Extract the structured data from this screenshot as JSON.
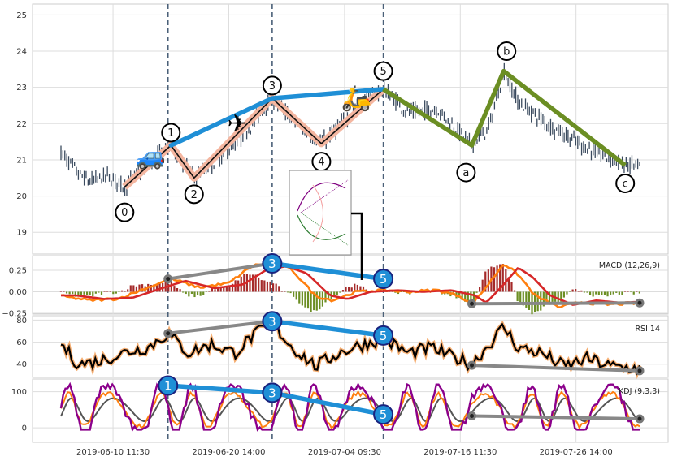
{
  "chart_data": [
    {
      "type": "candlestick",
      "panel": "price",
      "yticks": [
        19,
        20,
        21,
        22,
        23,
        24,
        25
      ],
      "ylim": [
        18.4,
        25.3
      ],
      "xlim": [
        0,
        100
      ],
      "xticks": [
        {
          "label": "2019-06-10 11:30",
          "pos": 9
        },
        {
          "label": "2019-06-20 14:00",
          "pos": 29
        },
        {
          "label": "2019-07-04 09:30",
          "pos": 49
        },
        {
          "label": "2019-07-16 11:30",
          "pos": 69
        },
        {
          "label": "2019-07-26 14:00",
          "pos": 89
        }
      ],
      "grid": true,
      "vlines_x": [
        18.5,
        36.5,
        55.7
      ],
      "elliott_impulse": {
        "labels": [
          "0",
          "1",
          "2",
          "3",
          "4",
          "5"
        ],
        "points": [
          [
            11,
            20.25
          ],
          [
            19,
            21.4
          ],
          [
            23,
            20.5
          ],
          [
            36.5,
            22.7
          ],
          [
            45,
            21.45
          ],
          [
            55.7,
            22.95
          ]
        ],
        "label_positions": [
          [
            11,
            19.55
          ],
          [
            19,
            21.75
          ],
          [
            23,
            20.05
          ],
          [
            36.5,
            23.05
          ],
          [
            45,
            20.95
          ],
          [
            55.7,
            23.45
          ]
        ]
      },
      "elliott_corrective": {
        "labels": [
          "a",
          "b",
          "c"
        ],
        "points": [
          [
            55.7,
            22.95
          ],
          [
            71,
            21.4
          ],
          [
            76.5,
            23.45
          ],
          [
            97.5,
            20.85
          ]
        ],
        "label_positions": [
          [
            70,
            20.65
          ],
          [
            77,
            24.0
          ],
          [
            97.5,
            20.35
          ]
        ]
      },
      "trend_line_points": [
        [
          19,
          21.4
        ],
        [
          36.5,
          22.7
        ],
        [
          55.7,
          22.95
        ]
      ],
      "icons": [
        {
          "name": "car",
          "glyph": "🚙",
          "x": 15.5,
          "y": 21.1
        },
        {
          "name": "airplane",
          "glyph": "✈",
          "x": 30.5,
          "y": 22.0
        },
        {
          "name": "scooter",
          "glyph": "🛵",
          "x": 51,
          "y": 22.7
        }
      ],
      "candle_anchors": [
        [
          0,
          21.2
        ],
        [
          3,
          20.6
        ],
        [
          5,
          20.4
        ],
        [
          8,
          20.55
        ],
        [
          11,
          20.25
        ],
        [
          15,
          20.9
        ],
        [
          19,
          21.4
        ],
        [
          23,
          20.5
        ],
        [
          27,
          21.0
        ],
        [
          31,
          21.6
        ],
        [
          36.5,
          22.7
        ],
        [
          40,
          22.1
        ],
        [
          43,
          21.7
        ],
        [
          45,
          21.45
        ],
        [
          49,
          22.1
        ],
        [
          53,
          22.7
        ],
        [
          55.7,
          22.95
        ],
        [
          60,
          22.3
        ],
        [
          65,
          22.4
        ],
        [
          71,
          21.4
        ],
        [
          74,
          21.9
        ],
        [
          76.5,
          23.45
        ],
        [
          79,
          22.6
        ],
        [
          84,
          22.0
        ],
        [
          90,
          21.4
        ],
        [
          97.5,
          20.85
        ]
      ]
    },
    {
      "type": "line",
      "panel": "MACD",
      "title": "MACD (12,26,9)",
      "yticks": [
        0.25,
        0.0,
        -0.25
      ],
      "ytick_labels": [
        "0.25",
        "0.00",
        "−0.25"
      ],
      "ylim": [
        -0.26,
        0.42
      ],
      "series_colors": {
        "macd": "#ff7f0e",
        "signal": "#d62728",
        "hist_pos": "#a52a2a",
        "hist_neg": "#6b8e23"
      },
      "macd_anchors": [
        [
          0,
          -0.05
        ],
        [
          5,
          -0.1
        ],
        [
          10,
          -0.08
        ],
        [
          15,
          0.05
        ],
        [
          19,
          0.15
        ],
        [
          24,
          0.05
        ],
        [
          29,
          0.1
        ],
        [
          33,
          0.3
        ],
        [
          36.5,
          0.35
        ],
        [
          40,
          0.25
        ],
        [
          44,
          -0.05
        ],
        [
          47,
          -0.1
        ],
        [
          51,
          0.0
        ],
        [
          55.7,
          0.02
        ],
        [
          60,
          0.0
        ],
        [
          65,
          0.02
        ],
        [
          69,
          -0.05
        ],
        [
          71,
          -0.15
        ],
        [
          74,
          0.1
        ],
        [
          76.5,
          0.33
        ],
        [
          79,
          0.2
        ],
        [
          82,
          -0.05
        ],
        [
          86,
          -0.18
        ],
        [
          90,
          -0.12
        ],
        [
          94,
          -0.15
        ],
        [
          100,
          -0.13
        ]
      ],
      "divergence_peaks": {
        "labels": [
          "3",
          "5"
        ],
        "points": [
          [
            36.5,
            0.33
          ],
          [
            55.7,
            0.15
          ]
        ]
      },
      "gray_lines": [
        [
          [
            18.5,
            0.15
          ],
          [
            36.5,
            0.33
          ]
        ],
        [
          [
            71,
            -0.14
          ],
          [
            100,
            -0.13
          ]
        ]
      ]
    },
    {
      "type": "line",
      "panel": "RSI",
      "title": "RSI 14",
      "yticks": [
        40,
        60,
        80
      ],
      "ylim": [
        28,
        84
      ],
      "series_colors": {
        "rsi": "#000000",
        "glow": "#f4a460"
      },
      "rsi_anchors": [
        [
          0,
          58
        ],
        [
          3,
          40
        ],
        [
          6,
          42
        ],
        [
          9,
          47
        ],
        [
          12,
          52
        ],
        [
          15,
          55
        ],
        [
          18.5,
          68
        ],
        [
          22,
          50
        ],
        [
          26,
          58
        ],
        [
          30,
          50
        ],
        [
          33,
          65
        ],
        [
          36.5,
          77
        ],
        [
          40,
          55
        ],
        [
          44,
          38
        ],
        [
          48,
          50
        ],
        [
          51,
          56
        ],
        [
          55.7,
          63
        ],
        [
          60,
          50
        ],
        [
          64,
          55
        ],
        [
          67,
          48
        ],
        [
          71,
          40
        ],
        [
          74,
          58
        ],
        [
          76.5,
          74
        ],
        [
          79,
          55
        ],
        [
          83,
          50
        ],
        [
          87,
          38
        ],
        [
          91,
          45
        ],
        [
          95,
          38
        ],
        [
          100,
          36
        ]
      ],
      "divergence_peaks": {
        "labels": [
          "3",
          "5"
        ],
        "points": [
          [
            36.5,
            79
          ],
          [
            55.7,
            66
          ]
        ]
      },
      "gray_lines": [
        [
          [
            18.5,
            68
          ],
          [
            36.5,
            79
          ]
        ],
        [
          [
            71,
            39
          ],
          [
            100,
            34
          ]
        ]
      ]
    },
    {
      "type": "line",
      "panel": "KDJ",
      "title": "KDJ (9,3,3)",
      "yticks": [
        0,
        100
      ],
      "ylim": [
        -40,
        135
      ],
      "series_colors": {
        "k": "#ff7f0e",
        "d": "#555555",
        "j": "#8b008b"
      },
      "divergence_peaks": {
        "labels": [
          "1",
          "3",
          "5"
        ],
        "points": [
          [
            18.5,
            117
          ],
          [
            36.5,
            97
          ],
          [
            55.7,
            37
          ]
        ]
      },
      "gray_lines": [
        [
          [
            71,
            33
          ],
          [
            100,
            25
          ]
        ]
      ],
      "j_cycles": 10
    }
  ]
}
